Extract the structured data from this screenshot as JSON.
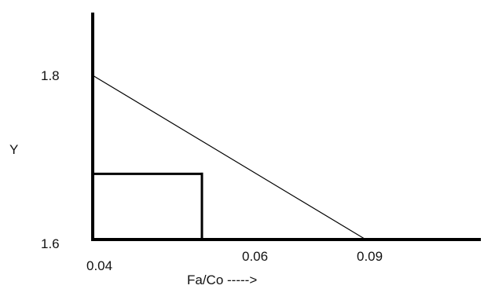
{
  "chart_data": {
    "type": "line",
    "title": "",
    "xlabel": "Fa/Co ----->",
    "ylabel": "Y",
    "x_tick_labels": [
      "0.04",
      "0.06",
      "0.09"
    ],
    "y_tick_labels": [
      "1.8",
      "1.6"
    ],
    "x_tick_values": [
      0.04,
      0.06,
      0.09
    ],
    "ylim": [
      1.6,
      1.8
    ],
    "grid": false,
    "legend": "none",
    "series": [
      {
        "x": [
          0.04,
          0.09
        ],
        "y": [
          1.8,
          1.6
        ]
      }
    ],
    "guide": {
      "x": 0.06,
      "y": 1.68
    },
    "colors": {
      "axis": "#000000",
      "line": "#000000",
      "text": "#111111"
    }
  }
}
